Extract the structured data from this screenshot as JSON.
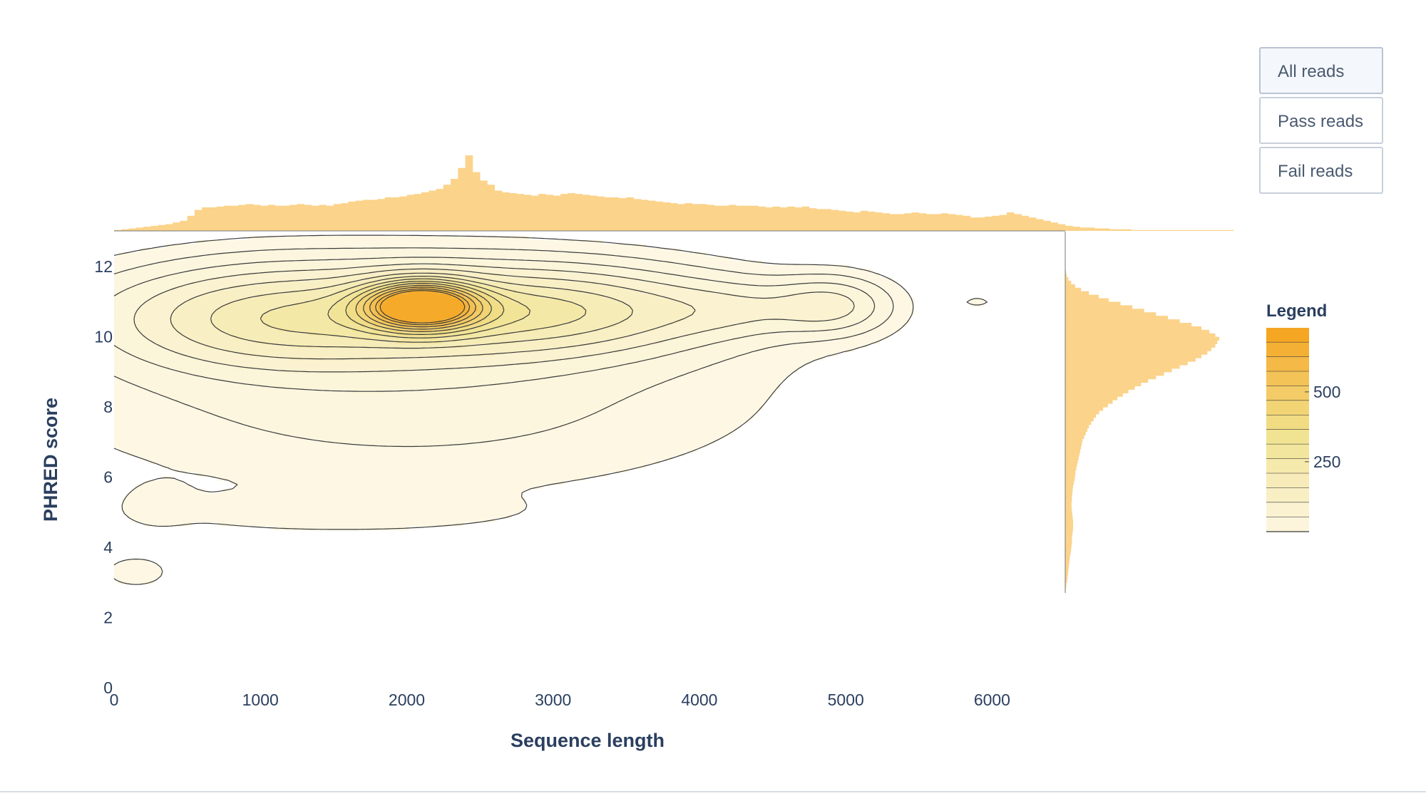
{
  "buttons": [
    {
      "label": "All reads",
      "active": true
    },
    {
      "label": "Pass reads",
      "active": false
    },
    {
      "label": "Fail reads",
      "active": false
    }
  ],
  "chart_data": {
    "type": "heatmap",
    "subtype": "2d-density-contour-with-marginal-histograms",
    "xlabel": "Sequence length",
    "ylabel": "PHRED score",
    "xlim": [
      0,
      6500
    ],
    "ylim": [
      0,
      13
    ],
    "x_ticks": [
      "0",
      "1000",
      "2000",
      "3000",
      "4000",
      "5000",
      "6000"
    ],
    "x_tick_values": [
      0,
      1000,
      2000,
      3000,
      4000,
      5000,
      6000
    ],
    "y_ticks": [
      "0",
      "2",
      "4",
      "6",
      "8",
      "10",
      "12"
    ],
    "y_tick_values": [
      0,
      2,
      4,
      6,
      8,
      10,
      12
    ],
    "colorscale": [
      "#fdf8e6",
      "#f8eec0",
      "#f0e391",
      "#f3c860",
      "#f5a623"
    ],
    "legend": {
      "title": "Legend",
      "ticks": [
        "250",
        "500"
      ],
      "tick_values": [
        250,
        500
      ],
      "range": [
        0,
        700
      ],
      "levels": 14
    },
    "density_peaks": [
      {
        "x": 2100,
        "y": 10.9,
        "peak": 700,
        "sx": 260,
        "sy": 0.45
      },
      {
        "x": 2000,
        "y": 10.6,
        "peak": 210,
        "sx": 1100,
        "sy": 0.9
      },
      {
        "x": 3000,
        "y": 10.8,
        "peak": 150,
        "sx": 700,
        "sy": 0.7
      },
      {
        "x": 1000,
        "y": 10.5,
        "peak": 110,
        "sx": 600,
        "sy": 0.9
      },
      {
        "x": 4900,
        "y": 10.9,
        "peak": 100,
        "sx": 250,
        "sy": 0.5
      },
      {
        "x": 4300,
        "y": 10.8,
        "peak": 60,
        "sx": 400,
        "sy": 0.5
      },
      {
        "x": 2000,
        "y": 8.5,
        "peak": 45,
        "sx": 1500,
        "sy": 1.8
      },
      {
        "x": 1500,
        "y": 5.0,
        "peak": 22,
        "sx": 800,
        "sy": 0.35
      },
      {
        "x": 300,
        "y": 5.2,
        "peak": 18,
        "sx": 150,
        "sy": 0.4
      },
      {
        "x": 150,
        "y": 3.3,
        "peak": 24,
        "sx": 150,
        "sy": 0.3
      },
      {
        "x": 5900,
        "y": 11.0,
        "peak": 14,
        "sx": 100,
        "sy": 0.15
      }
    ],
    "x_histogram": {
      "bin_start": 0,
      "bin_width": 50,
      "bin_step_note": "",
      "counts": [
        1,
        2,
        3,
        4,
        5,
        6,
        7,
        8,
        10,
        12,
        18,
        25,
        28,
        28,
        29,
        30,
        30,
        31,
        32,
        31,
        30,
        31,
        30,
        30,
        31,
        32,
        31,
        30,
        31,
        30,
        32,
        33,
        35,
        36,
        37,
        37,
        38,
        40,
        40,
        41,
        43,
        44,
        46,
        48,
        50,
        55,
        62,
        75,
        90,
        70,
        60,
        55,
        48,
        46,
        45,
        44,
        43,
        42,
        44,
        43,
        42,
        44,
        45,
        44,
        43,
        42,
        41,
        40,
        40,
        39,
        40,
        38,
        37,
        36,
        35,
        34,
        33,
        32,
        33,
        32,
        32,
        31,
        30,
        30,
        31,
        30,
        30,
        30,
        29,
        28,
        29,
        28,
        29,
        28,
        29,
        27,
        26,
        26,
        25,
        24,
        23,
        22,
        24,
        23,
        22,
        21,
        20,
        20,
        21,
        22,
        21,
        20,
        20,
        21,
        20,
        19,
        18,
        16,
        16,
        17,
        18,
        19,
        22,
        20,
        18,
        16,
        14,
        12,
        10,
        8,
        6,
        5,
        4,
        4,
        3,
        3,
        2,
        2,
        2,
        1,
        1,
        1,
        1,
        1,
        1,
        1,
        1,
        1,
        1,
        1,
        1,
        1,
        1
      ]
    },
    "y_histogram": {
      "bin_start": 2.7,
      "bin_width": 0.1,
      "counts": [
        1,
        2,
        3,
        5,
        6,
        7,
        8,
        9,
        10,
        11,
        12,
        14,
        15,
        16,
        17,
        17,
        18,
        19,
        20,
        20,
        20,
        19,
        18,
        17,
        16,
        16,
        17,
        17,
        18,
        19,
        20,
        22,
        24,
        25,
        26,
        28,
        30,
        32,
        34,
        36,
        38,
        40,
        42,
        44,
        48,
        52,
        56,
        60,
        66,
        72,
        78,
        86,
        96,
        108,
        120,
        132,
        146,
        160,
        176,
        192,
        210,
        230,
        250,
        270,
        290,
        310,
        330,
        345,
        360,
        370,
        380,
        385,
        390,
        380,
        365,
        345,
        320,
        290,
        260,
        230,
        200,
        170,
        140,
        110,
        85,
        60,
        40,
        25,
        15,
        8,
        4,
        2,
        1
      ]
    }
  }
}
